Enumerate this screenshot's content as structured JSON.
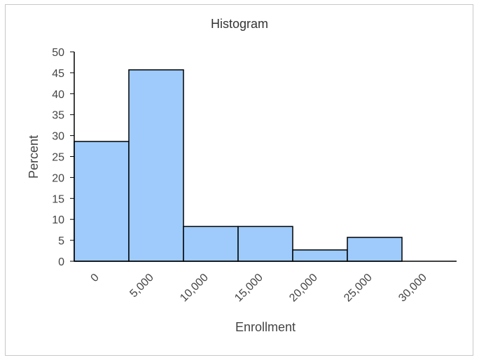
{
  "chart_data": {
    "type": "bar",
    "title": "Histogram",
    "xlabel": "Enrollment",
    "ylabel": "Percent",
    "categories": [
      "0",
      "5,000",
      "10,000",
      "15,000",
      "20,000",
      "25,000",
      "30,000"
    ],
    "values": [
      28.6,
      45.7,
      8.3,
      8.3,
      2.7,
      5.7,
      0
    ],
    "ylim": [
      0,
      50
    ],
    "yticks": [
      "0",
      "5",
      "10",
      "15",
      "20",
      "25",
      "30",
      "35",
      "40",
      "45",
      "50"
    ],
    "grid": false,
    "legend": "none",
    "colors": {
      "bar_fill": "#9ecbfc",
      "bar_stroke": "#000000",
      "axis": "#000000"
    }
  }
}
